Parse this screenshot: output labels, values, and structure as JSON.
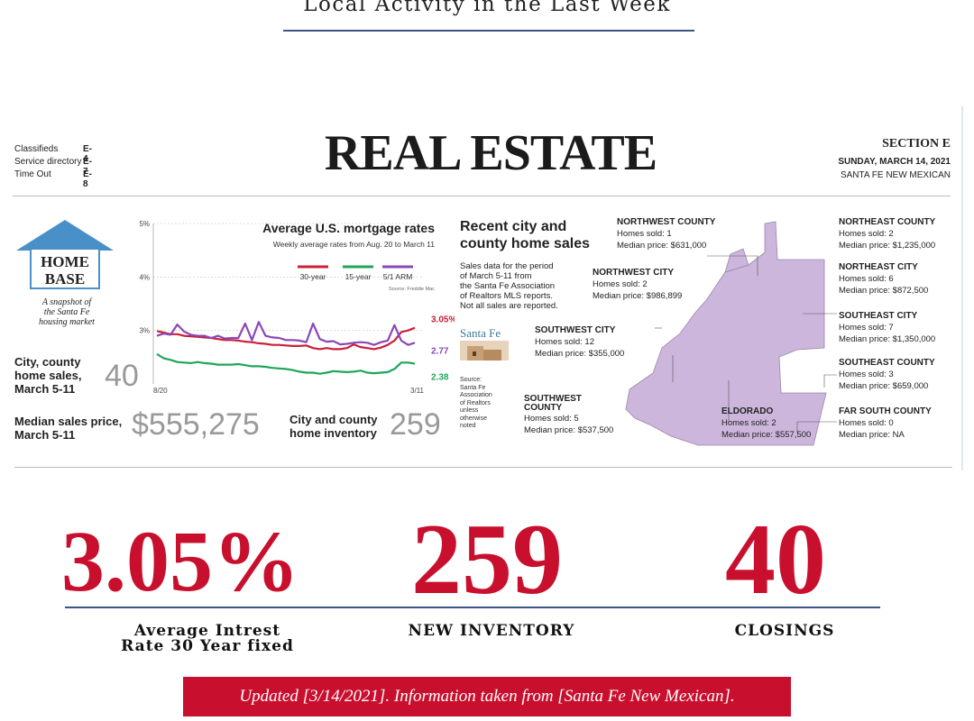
{
  "page": {
    "title": "Local Activity in the Last Week"
  },
  "clipping": {
    "index": [
      {
        "label": "Classifieds",
        "page": "E-4"
      },
      {
        "label": "Service directory",
        "page": "E-7"
      },
      {
        "label": "Time Out",
        "page": "E-8"
      }
    ],
    "masthead": "REAL ESTATE",
    "section": "SECTION E",
    "date": "SUNDAY, MARCH 14, 2021",
    "publication": "SANTA FE NEW MEXICAN",
    "home_base": {
      "line1": "HOME",
      "line2": "BASE",
      "tagline1": "A snapshot of",
      "tagline2": "the Santa Fe",
      "tagline3": "housing market"
    },
    "stats": {
      "sales_label1": "City, county",
      "sales_label2": "home sales,",
      "sales_label3": "March 5-11",
      "sales_value": "40",
      "median_label1": "Median sales price,",
      "median_label2": "March 5-11",
      "median_value": "$555,275",
      "inventory_label1": "City and county",
      "inventory_label2": "home inventory",
      "inventory_value": "259"
    },
    "recent": {
      "title1": "Recent city and",
      "title2": "county home sales",
      "desc1": "Sales data for the period",
      "desc2": "of March 5-11 from",
      "desc3": "the Santa Fe Association",
      "desc4": "of Realtors MLS reports.",
      "desc5": "Not all sales are reported.",
      "logo_text": "Santa Fe",
      "source1": "Source:",
      "source2": "Santa Fe",
      "source3": "Association",
      "source4": "of Realtors",
      "source5": "unless",
      "source6": "otherwise",
      "source7": "noted"
    },
    "areas": [
      {
        "name": "NORTHWEST COUNTY",
        "sold": "Homes sold: 1",
        "price": "Median price: $631,000"
      },
      {
        "name": "NORTHWEST CITY",
        "sold": "Homes sold: 2",
        "price": "Median price: $986,899"
      },
      {
        "name": "SOUTHWEST CITY",
        "sold": "Homes sold: 12",
        "price": "Median price: $355,000"
      },
      {
        "name": "SOUTHWEST COUNTY",
        "sold": "Homes sold: 5",
        "price": "Median price: $537,500"
      },
      {
        "name": "ELDORADO",
        "sold": "Homes sold: 2",
        "price": "Median price: $557,500"
      },
      {
        "name": "NORTHEAST COUNTY",
        "sold": "Homes sold: 2",
        "price": "Median price: $1,235,000"
      },
      {
        "name": "NORTHEAST CITY",
        "sold": "Homes sold: 6",
        "price": "Median price: $872,500"
      },
      {
        "name": "SOUTHEAST CITY",
        "sold": "Homes sold: 7",
        "price": "Median price: $1,350,000"
      },
      {
        "name": "SOUTHEAST COUNTY",
        "sold": "Homes sold: 3",
        "price": "Median price: $659,000"
      },
      {
        "name": "FAR SOUTH COUNTY",
        "sold": "Homes sold: 0",
        "price": "Median price: NA"
      }
    ],
    "map_color": "#cdb6dc"
  },
  "chart_data": {
    "type": "line",
    "title": "Average U.S. mortgage rates",
    "subtitle": "Weekly average rates from Aug. 20 to March 11",
    "source": "Source: Freddie Mac",
    "x_labels": [
      "8/20",
      "3/11"
    ],
    "y_ticks": [
      "3%",
      "4%",
      "5%"
    ],
    "ylim": [
      2,
      5
    ],
    "series": [
      {
        "name": "30-year",
        "color": "#c8203a",
        "end_label": "3.05%",
        "values": [
          2.99,
          2.96,
          2.93,
          2.93,
          2.9,
          2.89,
          2.88,
          2.87,
          2.86,
          2.84,
          2.82,
          2.82,
          2.81,
          2.79,
          2.78,
          2.76,
          2.75,
          2.73,
          2.73,
          2.72,
          2.71,
          2.71,
          2.72,
          2.67,
          2.65,
          2.67,
          2.65,
          2.65,
          2.67,
          2.74,
          2.69,
          2.67,
          2.65,
          2.68,
          2.73,
          2.81,
          2.97,
          3.0,
          3.05
        ]
      },
      {
        "name": "15-year",
        "color": "#1fa65a",
        "end_label": "2.38",
        "values": [
          2.56,
          2.48,
          2.45,
          2.41,
          2.4,
          2.39,
          2.41,
          2.39,
          2.38,
          2.36,
          2.36,
          2.36,
          2.37,
          2.35,
          2.33,
          2.33,
          2.32,
          2.3,
          2.29,
          2.28,
          2.26,
          2.23,
          2.21,
          2.21,
          2.19,
          2.21,
          2.24,
          2.23,
          2.22,
          2.23,
          2.25,
          2.21,
          2.2,
          2.21,
          2.22,
          2.28,
          2.4,
          2.4,
          2.38
        ]
      },
      {
        "name": "5/1 ARM",
        "color": "#8a47b5",
        "end_label": "2.77",
        "values": [
          2.9,
          2.94,
          2.92,
          3.11,
          2.98,
          2.92,
          2.9,
          2.9,
          2.86,
          2.9,
          2.85,
          2.86,
          2.86,
          3.13,
          2.82,
          3.16,
          2.9,
          2.87,
          2.86,
          2.82,
          2.82,
          2.81,
          2.78,
          3.13,
          2.84,
          2.79,
          2.8,
          2.74,
          2.75,
          2.77,
          2.78,
          2.77,
          2.73,
          2.78,
          2.81,
          3.1,
          2.81,
          2.73,
          2.77
        ]
      }
    ]
  },
  "highlights": [
    {
      "value": "3.05%",
      "caption1": "Average Intrest",
      "caption2": "Rate 30 Year fixed"
    },
    {
      "value": "259",
      "caption1": "NEW INVENTORY",
      "caption2": ""
    },
    {
      "value": "40",
      "caption1": "CLOSINGS",
      "caption2": ""
    }
  ],
  "footer": "Updated [3/14/2021]. Information taken from [Santa Fe New Mexican]."
}
